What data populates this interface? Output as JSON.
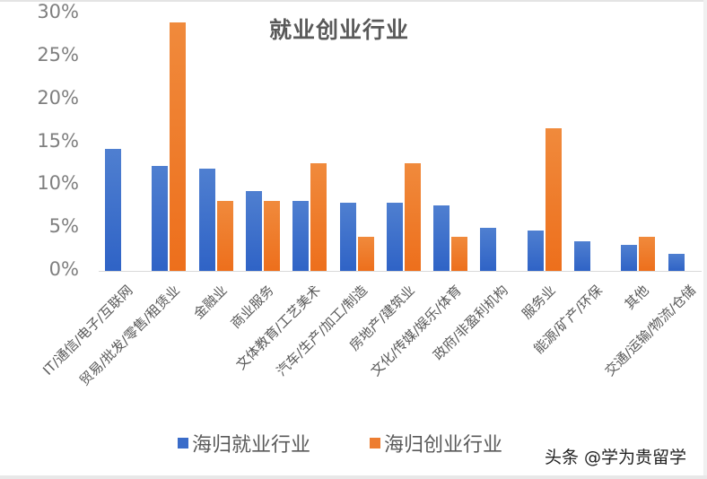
{
  "chart_data": {
    "type": "bar",
    "title": "就业创业行业",
    "xlabel": "",
    "ylabel": "",
    "ylim": [
      0,
      30
    ],
    "yticks": [
      "0%",
      "5%",
      "10%",
      "15%",
      "20%",
      "25%",
      "30%"
    ],
    "grid": false,
    "legend_position": "bottom",
    "categories": [
      "IT/通信/电子/互联网",
      "贸易/批发/零售/租赁业",
      "金融业",
      "商业服务",
      "文体教育/工艺美术",
      "汽车/生产/加工/制造",
      "房地产/建筑业",
      "文化/传媒/娱乐/体育",
      "政府/非盈利机构",
      "服务业",
      "能源/矿产/环保",
      "其他",
      "交通/运输/物流/仓储"
    ],
    "series": [
      {
        "name": "海归就业行业",
        "color": "#3a6cc9",
        "values": [
          14.2,
          12.2,
          11.9,
          9.3,
          8.2,
          7.9,
          7.9,
          7.6,
          5.0,
          4.7,
          3.4,
          3.0,
          2.0
        ]
      },
      {
        "name": "海归创业行业",
        "color": "#ed7d31",
        "values": [
          0,
          29.0,
          8.2,
          8.2,
          12.5,
          4.0,
          12.5,
          4.0,
          0,
          16.6,
          0,
          4.0,
          0
        ]
      }
    ]
  },
  "watermark": "头条 @学为贵留学"
}
